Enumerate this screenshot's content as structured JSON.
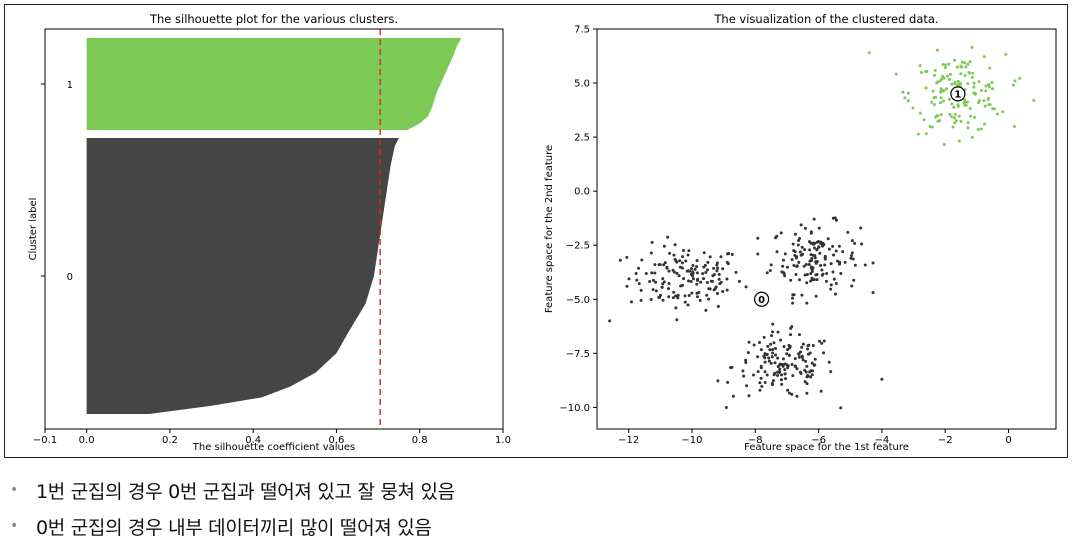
{
  "chart_data": [
    {
      "type": "bar",
      "orientation": "horizontal",
      "title": "The silhouette plot for the various clusters.",
      "xlabel": "The silhouette coefficient values",
      "ylabel": "Cluster label",
      "xlim": [
        -0.1,
        1.0
      ],
      "xticks": [
        "−0.1",
        "0.0",
        "0.2",
        "0.4",
        "0.6",
        "0.8",
        "1.0"
      ],
      "xtick_values": [
        -0.1,
        0.0,
        0.2,
        0.4,
        0.6,
        0.8,
        1.0
      ],
      "clusters": [
        {
          "label": "1",
          "color": "#7cc956",
          "size_fraction": 0.25,
          "max_value": 0.9,
          "min_value": 0.75,
          "profile": [
            [
              0.0,
              0.9
            ],
            [
              0.08,
              0.89
            ],
            [
              0.2,
              0.88
            ],
            [
              0.4,
              0.86
            ],
            [
              0.6,
              0.84
            ],
            [
              0.75,
              0.83
            ],
            [
              0.85,
              0.82
            ],
            [
              0.93,
              0.8
            ],
            [
              1.0,
              0.77
            ]
          ]
        },
        {
          "label": "0",
          "color": "#454545",
          "size_fraction": 0.75,
          "max_value": 0.75,
          "min_value": 0.15,
          "profile": [
            [
              0.0,
              0.75
            ],
            [
              0.03,
              0.74
            ],
            [
              0.1,
              0.73
            ],
            [
              0.2,
              0.72
            ],
            [
              0.3,
              0.71
            ],
            [
              0.4,
              0.7
            ],
            [
              0.5,
              0.69
            ],
            [
              0.6,
              0.67
            ],
            [
              0.7,
              0.63
            ],
            [
              0.78,
              0.6
            ],
            [
              0.85,
              0.55
            ],
            [
              0.9,
              0.49
            ],
            [
              0.94,
              0.42
            ],
            [
              0.97,
              0.3
            ],
            [
              0.99,
              0.2
            ],
            [
              1.0,
              0.15
            ]
          ]
        }
      ],
      "average_silhouette": 0.705,
      "average_line_color": "#d62728"
    },
    {
      "type": "scatter",
      "title": "The visualization of the clustered data.",
      "xlabel": "Feature space for the 1st feature",
      "ylabel": "Feature space for the 2nd feature",
      "xlim": [
        -13,
        1.5
      ],
      "ylim": [
        -11,
        7.5
      ],
      "xticks": [
        "−12",
        "−10",
        "−8",
        "−6",
        "−4",
        "−2",
        "0"
      ],
      "xtick_values": [
        -12,
        -10,
        -8,
        -6,
        -4,
        -2,
        0
      ],
      "yticks": [
        "7.5",
        "5.0",
        "2.5",
        "0.0",
        "−2.5",
        "−5.0",
        "−7.5",
        "−10.0"
      ],
      "ytick_values": [
        7.5,
        5.0,
        2.5,
        0.0,
        -2.5,
        -5.0,
        -7.5,
        -10.0
      ],
      "series": [
        {
          "cluster": "0",
          "color": "#333333",
          "blobs": [
            {
              "cx": -10.2,
              "cy": -4.0,
              "sx": 0.9,
              "sy": 0.75,
              "n": 150
            },
            {
              "cx": -6.1,
              "cy": -3.1,
              "sx": 0.7,
              "sy": 0.8,
              "n": 150
            },
            {
              "cx": -7.1,
              "cy": -8.1,
              "sx": 0.8,
              "sy": 0.75,
              "n": 150
            }
          ],
          "outliers": [
            [
              -12.6,
              -6.0
            ],
            [
              -4.0,
              -8.7
            ]
          ]
        },
        {
          "cluster": "1",
          "color": "#7cc956",
          "blobs": [
            {
              "cx": -1.6,
              "cy": 4.5,
              "sx": 0.75,
              "sy": 0.9,
              "n": 150
            }
          ],
          "outliers": [
            [
              -4.4,
              6.4
            ],
            [
              0.8,
              4.2
            ]
          ]
        }
      ],
      "centers": [
        {
          "label": "0",
          "x": -7.8,
          "y": -5.0
        },
        {
          "label": "1",
          "x": -1.6,
          "y": 4.5
        }
      ]
    }
  ],
  "notes": {
    "bullet": "•",
    "items": [
      "1번 군집의 경우 0번 군집과 떨어져 있고 잘 뭉쳐 있음",
      "0번 군집의 경우 내부 데이터끼리 많이 떨어져 있음"
    ]
  }
}
